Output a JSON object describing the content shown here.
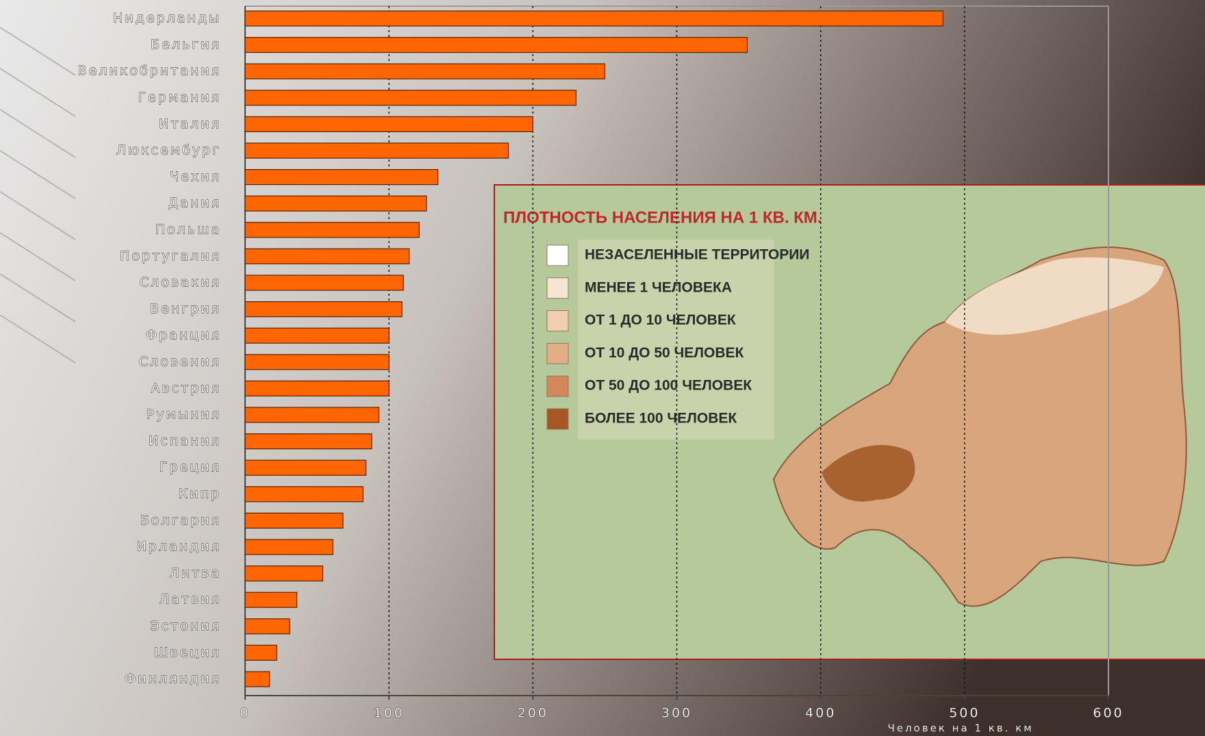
{
  "chart_data": {
    "type": "barh",
    "x_label": "Человек на 1 кв. км",
    "categories": [
      "Нидерланды",
      "Бельгия",
      "Великобритания",
      "Германия",
      "Италия",
      "Люксембург",
      "Чехия",
      "Дания",
      "Польша",
      "Португалия",
      "Словакия",
      "Венгрия",
      "Франция",
      "Словения",
      "Австрия",
      "Румыния",
      "Испания",
      "Греция",
      "Кипр",
      "Болгария",
      "Ирландия",
      "Литва",
      "Латвия",
      "Эстония",
      "Швеция",
      "Финляндия"
    ],
    "values": [
      485,
      349,
      250,
      230,
      200,
      183,
      134,
      126,
      121,
      114,
      110,
      109,
      100,
      100,
      100,
      93,
      88,
      84,
      82,
      68,
      61,
      54,
      36,
      31,
      22,
      17
    ],
    "color": "#ff6600",
    "xlim": [
      0,
      600
    ],
    "xticks": [
      0,
      100,
      200,
      300,
      400,
      500,
      600
    ],
    "grid": true
  },
  "inset": {
    "title": "ПЛОТНОСТЬ НАСЕЛЕНИЯ НА 1 КВ. КМ.",
    "legend": [
      "НЕЗАСЕЛЕННЫЕ ТЕРРИТОРИИ",
      "МЕНЕЕ 1 ЧЕЛОВЕКА",
      "ОТ 1 ДО 10 ЧЕЛОВЕК",
      "ОТ 10 ДО 50 ЧЕЛОВЕК",
      "ОТ 50 ДО 100 ЧЕЛОВЕК",
      "БОЛЕЕ 100 ЧЕЛОВЕК"
    ]
  }
}
